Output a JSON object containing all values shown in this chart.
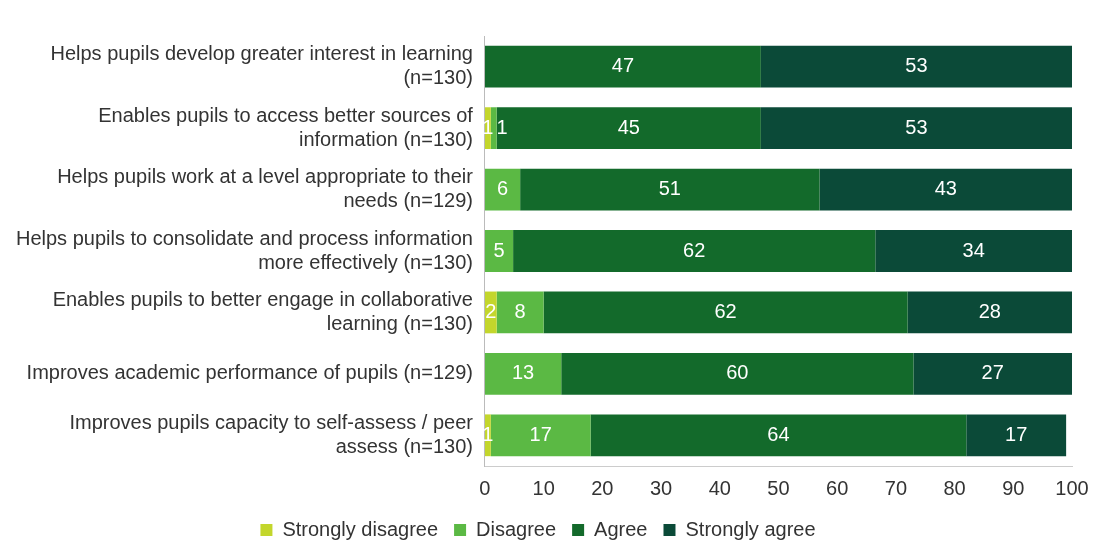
{
  "chart_data": {
    "type": "bar",
    "orientation": "horizontal",
    "stacked": true,
    "categories": [
      "Helps pupils develop greater interest in learning (n=130)",
      "Enables pupils to access better sources of information (n=130)",
      "Helps pupils work at a level appropriate to their needs (n=129)",
      "Helps pupils to consolidate and process information more effectively (n=130)",
      "Enables pupils to better engage in collaborative learning (n=130)",
      "Improves academic performance of pupils (n=129)",
      "Improves pupils capacity to self-assess / peer assess (n=130)"
    ],
    "series": [
      {
        "name": "Strongly disagree",
        "color": "#c3d62c",
        "values": [
          null,
          1,
          null,
          null,
          2,
          null,
          1
        ],
        "value_labels": [
          null,
          "1",
          null,
          null,
          "2",
          null,
          "1"
        ]
      },
      {
        "name": "Disagree",
        "color": "#5bb944",
        "values": [
          null,
          1,
          6,
          4.8,
          8,
          13,
          17
        ],
        "value_labels": [
          null,
          "1",
          "6",
          "5",
          "8",
          "13",
          "17"
        ]
      },
      {
        "name": "Agree",
        "color": "#136a2b",
        "values": [
          47,
          45,
          51,
          61.7,
          62,
          60,
          64
        ],
        "value_labels": [
          "47",
          "45",
          "51",
          "62",
          "62",
          "60",
          "64"
        ]
      },
      {
        "name": "Strongly agree",
        "color": "#0b4a38",
        "values": [
          53,
          53,
          43,
          33.5,
          28,
          27,
          17
        ],
        "value_labels": [
          "53",
          "53",
          "43",
          "34",
          "28",
          "27",
          "17"
        ]
      }
    ],
    "xlim": [
      0,
      100
    ],
    "xticks": [
      0,
      10,
      20,
      30,
      40,
      50,
      60,
      70,
      80,
      90,
      100
    ],
    "grid": false,
    "legend": "bottom"
  }
}
